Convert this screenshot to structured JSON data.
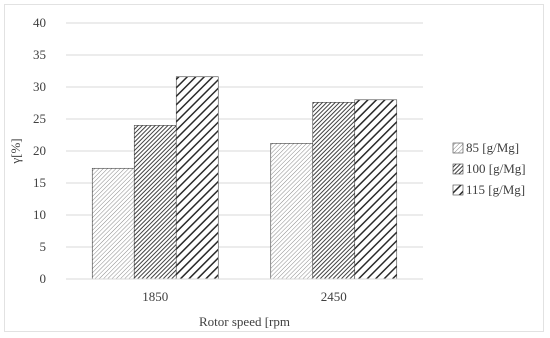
{
  "chart_data": {
    "type": "bar",
    "categories": [
      "1850",
      "2450"
    ],
    "series": [
      {
        "name": "85 [g/Mg]",
        "values": [
          17.3,
          21.2
        ],
        "pattern": "fine-diagonal"
      },
      {
        "name": "100 [g/Mg]",
        "values": [
          24.0,
          27.6
        ],
        "pattern": "dense-diagonal"
      },
      {
        "name": "115 [g/Mg]",
        "values": [
          31.6,
          28.0
        ],
        "pattern": "wide-diagonal"
      }
    ],
    "xlabel": "Rotor speed [rpm",
    "ylabel": "γ[%]",
    "ylim": [
      0,
      40
    ],
    "yticks": [
      "0",
      "5",
      "10",
      "15",
      "20",
      "25",
      "30",
      "35",
      "40"
    ],
    "grid": true,
    "legend_position": "right",
    "colors": {
      "grid": "#d9d9d9",
      "bar_outline": "#404040",
      "text": "#404040"
    }
  }
}
